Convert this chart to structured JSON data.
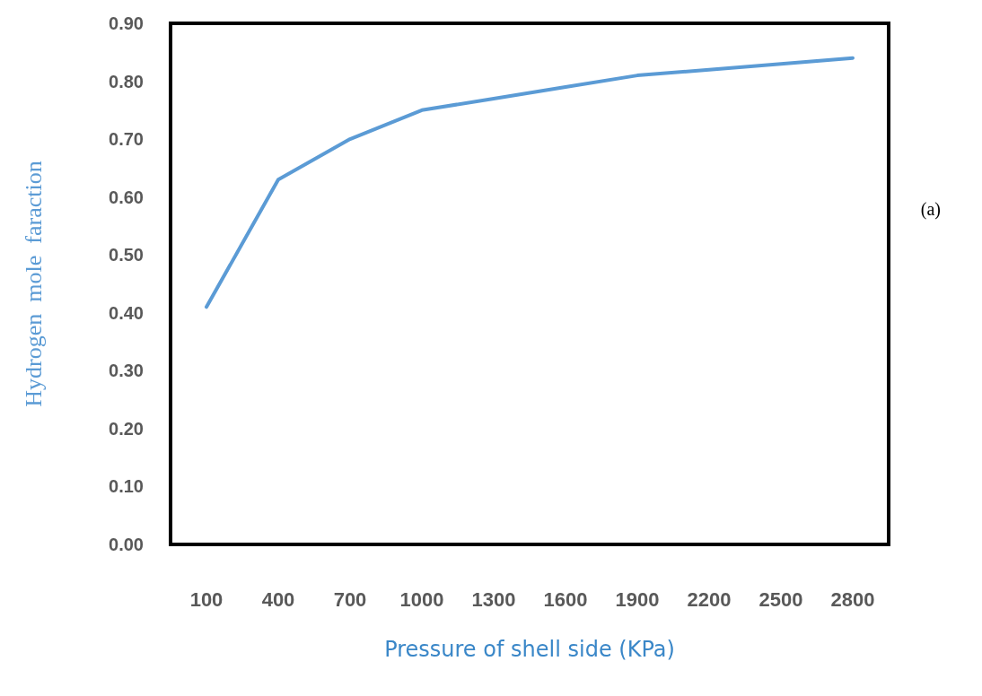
{
  "chart_data": {
    "type": "line",
    "xlabel": "Pressure of shell side (KPa)",
    "ylabel": "Hydrogen  mole  faraction",
    "categories": [
      "100",
      "400",
      "700",
      "1000",
      "1300",
      "1600",
      "1900",
      "2200",
      "2500",
      "2800"
    ],
    "series": [
      {
        "color": "#5b9bd5",
        "values": [
          0.41,
          0.63,
          0.7,
          0.75,
          0.77,
          0.79,
          0.81,
          0.82,
          0.83,
          0.84
        ]
      }
    ],
    "ylim": [
      0,
      0.9
    ],
    "yticks": [
      {
        "value": 0,
        "label": "0.00"
      },
      {
        "value": 0.1,
        "label": "0.10"
      },
      {
        "value": 0.2,
        "label": "0.20"
      },
      {
        "value": 0.3,
        "label": "0.30"
      },
      {
        "value": 0.4,
        "label": "0.40"
      },
      {
        "value": 0.5,
        "label": "0.50"
      },
      {
        "value": 0.6,
        "label": "0.60"
      },
      {
        "value": 0.7,
        "label": "0.70"
      },
      {
        "value": 0.8,
        "label": "0.80"
      },
      {
        "value": 0.9,
        "label": "0.90"
      }
    ],
    "grid": false,
    "marker": "none",
    "line_style": "solid",
    "annotations": [
      "(a)"
    ]
  }
}
